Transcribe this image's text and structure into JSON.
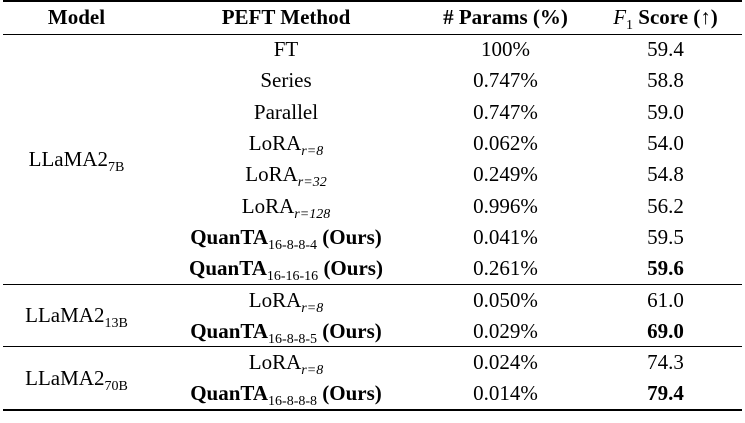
{
  "headers": {
    "model": "Model",
    "method": "PEFT Method",
    "params": "# Params (%)",
    "score_var": "F",
    "score_sub": "1",
    "score_rest": " Score (↑)"
  },
  "groups": [
    {
      "model_base": "LLaMA2",
      "model_sub": "7B",
      "rows": [
        {
          "name": "FT",
          "sub": "",
          "suffix": "",
          "bold": false,
          "params": "100%",
          "score": "59.4",
          "score_bold": false
        },
        {
          "name": "Series",
          "sub": "",
          "suffix": "",
          "bold": false,
          "params": "0.747%",
          "score": "58.8",
          "score_bold": false
        },
        {
          "name": "Parallel",
          "sub": "",
          "suffix": "",
          "bold": false,
          "params": "0.747%",
          "score": "59.0",
          "score_bold": false
        },
        {
          "name": "LoRA",
          "sub": "r=8",
          "suffix": "",
          "bold": false,
          "params": "0.062%",
          "score": "54.0",
          "score_bold": false
        },
        {
          "name": "LoRA",
          "sub": "r=32",
          "suffix": "",
          "bold": false,
          "params": "0.249%",
          "score": "54.8",
          "score_bold": false
        },
        {
          "name": "LoRA",
          "sub": "r=128",
          "suffix": "",
          "bold": false,
          "params": "0.996%",
          "score": "56.2",
          "score_bold": false
        },
        {
          "name": "QuanTA",
          "sub": "16-8-8-4",
          "suffix": " (Ours)",
          "bold": true,
          "params": "0.041%",
          "score": "59.5",
          "score_bold": false
        },
        {
          "name": "QuanTA",
          "sub": "16-16-16",
          "suffix": " (Ours)",
          "bold": true,
          "params": "0.261%",
          "score": "59.6",
          "score_bold": true
        }
      ]
    },
    {
      "model_base": "LLaMA2",
      "model_sub": "13B",
      "rows": [
        {
          "name": "LoRA",
          "sub": "r=8",
          "suffix": "",
          "bold": false,
          "params": "0.050%",
          "score": "61.0",
          "score_bold": false
        },
        {
          "name": "QuanTA",
          "sub": "16-8-8-5",
          "suffix": " (Ours)",
          "bold": true,
          "params": "0.029%",
          "score": "69.0",
          "score_bold": true
        }
      ]
    },
    {
      "model_base": "LLaMA2",
      "model_sub": "70B",
      "rows": [
        {
          "name": "LoRA",
          "sub": "r=8",
          "suffix": "",
          "bold": false,
          "params": "0.024%",
          "score": "74.3",
          "score_bold": false
        },
        {
          "name": "QuanTA",
          "sub": "16-8-8-8",
          "suffix": " (Ours)",
          "bold": true,
          "params": "0.014%",
          "score": "79.4",
          "score_bold": true
        }
      ]
    }
  ]
}
